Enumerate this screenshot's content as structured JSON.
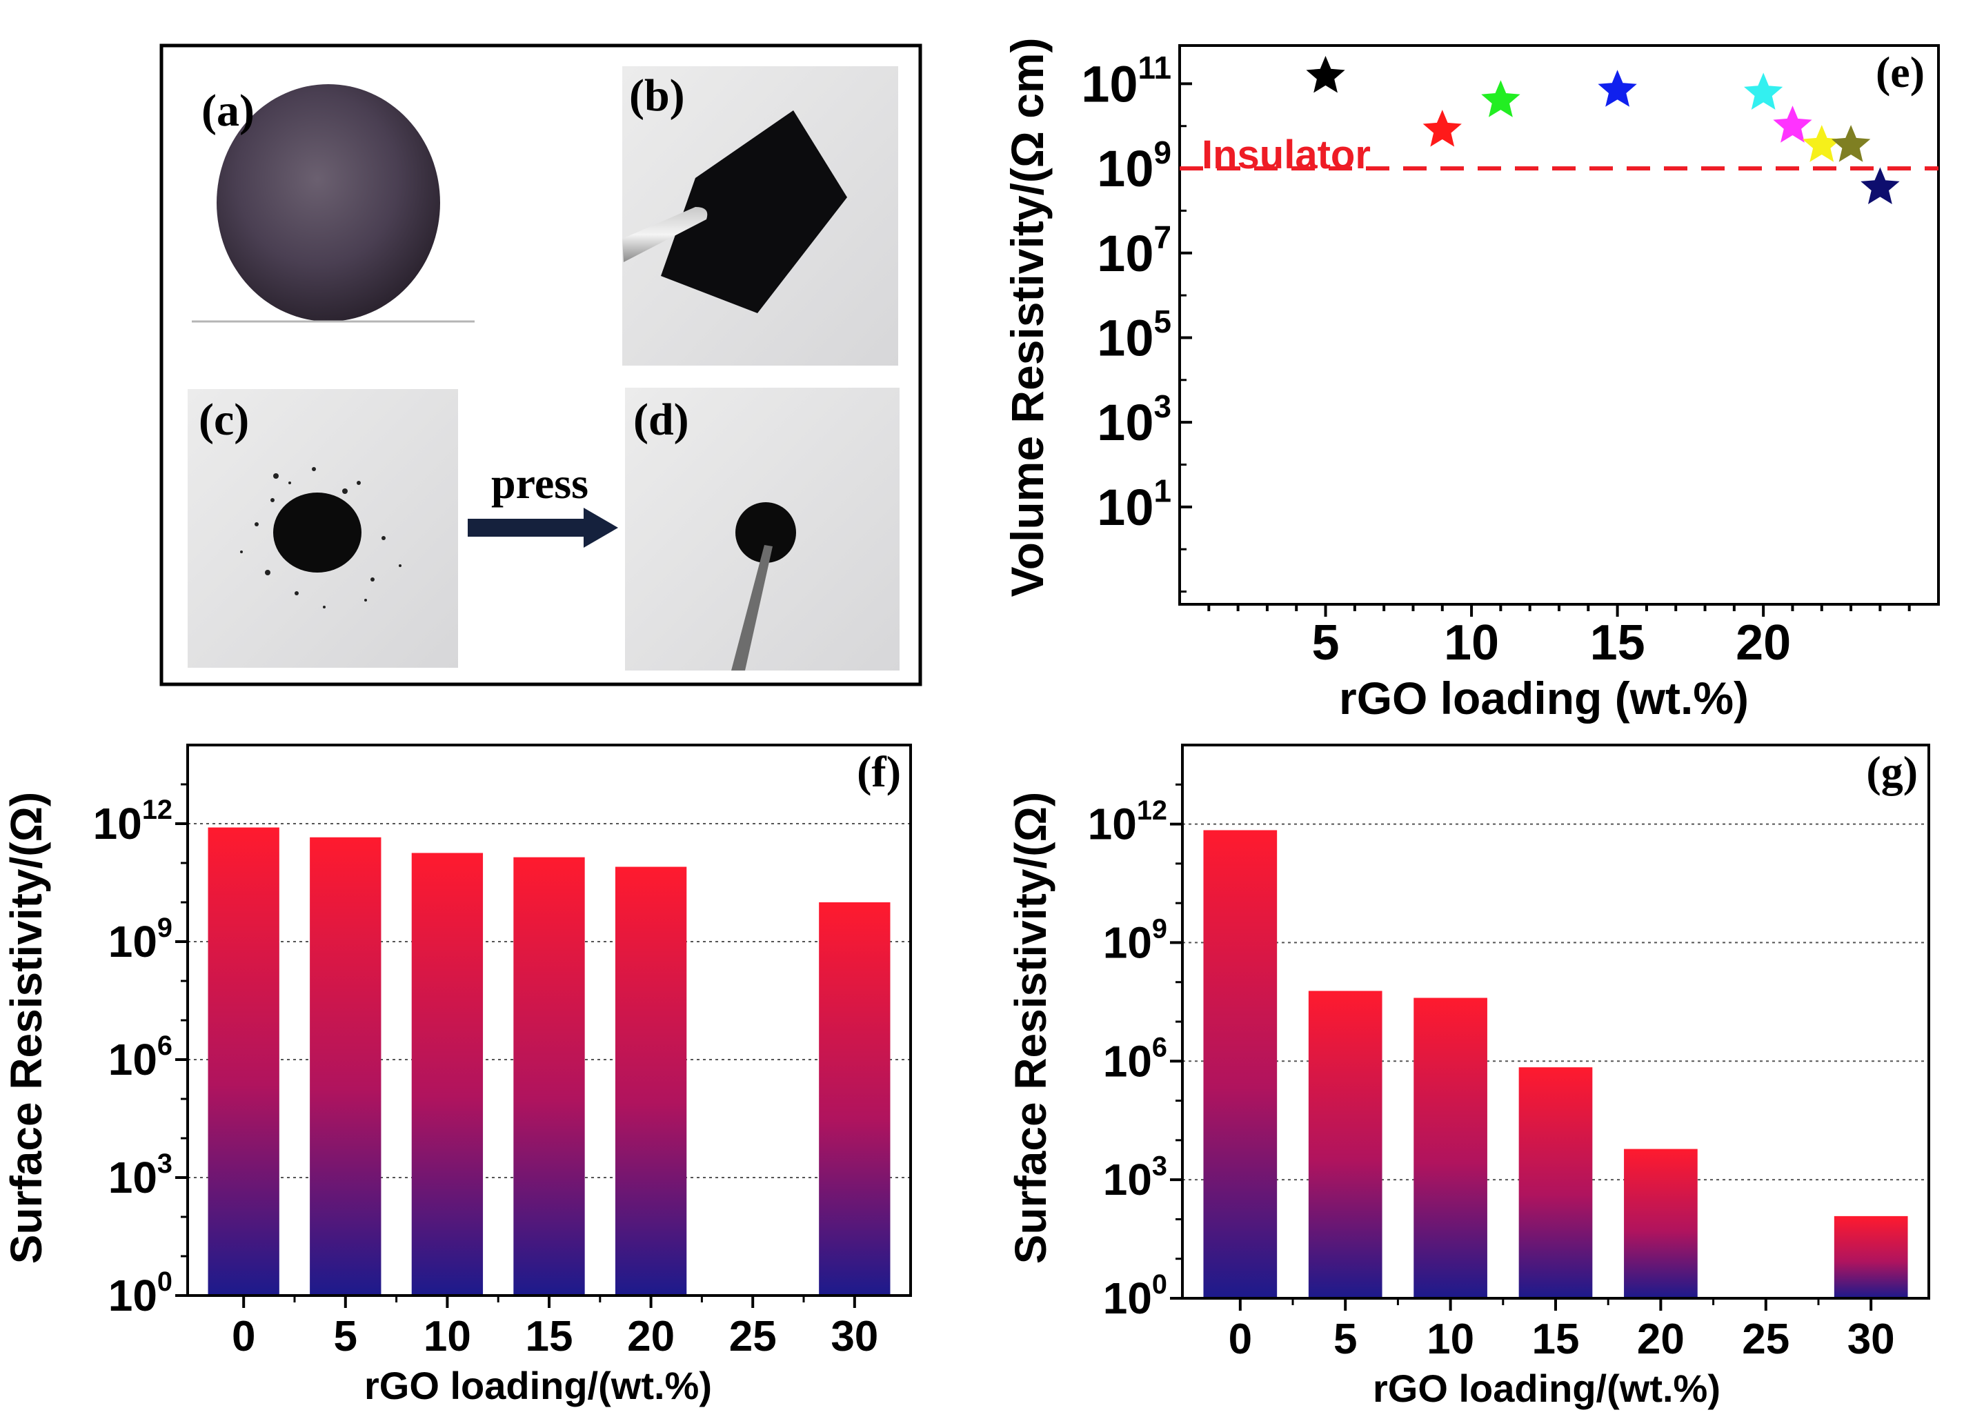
{
  "photos": {
    "a": {
      "letter": "(a)"
    },
    "b": {
      "letter": "(b)"
    },
    "c": {
      "letter": "(c)"
    },
    "d": {
      "letter": "(d)"
    },
    "arrow_label": "press"
  },
  "chart_data": [
    {
      "panel": "(e)",
      "type": "scatter",
      "marker": "star",
      "xlabel": "rGO loading (wt.%)",
      "ylabel": "Volume Resistivity/(Ω cm)",
      "yscale": "log",
      "xlim": [
        0,
        26
      ],
      "ylim": [
        0.05,
        800000000000
      ],
      "x_ticks": [
        5,
        10,
        15,
        20
      ],
      "y_tick_exponents": [
        1,
        3,
        5,
        7,
        9,
        11
      ],
      "annotation": "Insulator",
      "threshold": 1000000000,
      "threshold_color": "#ee1c25",
      "points": [
        {
          "x": 5,
          "y": 150000000000,
          "color": "#000000"
        },
        {
          "x": 9,
          "y": 8000000000,
          "color": "#ff1a1a"
        },
        {
          "x": 11,
          "y": 40000000000,
          "color": "#22ee22"
        },
        {
          "x": 15,
          "y": 70000000000,
          "color": "#1020ee"
        },
        {
          "x": 20,
          "y": 60000000000,
          "color": "#33f0f0"
        },
        {
          "x": 21,
          "y": 10000000000,
          "color": "#ff33ff"
        },
        {
          "x": 22,
          "y": 3500000000,
          "color": "#f6f01a"
        },
        {
          "x": 23,
          "y": 3500000000,
          "color": "#7f7f22"
        },
        {
          "x": 24,
          "y": 350000000,
          "color": "#0e0e6e"
        }
      ]
    },
    {
      "panel": "(f)",
      "type": "bar",
      "xlabel": "rGO loading/(wt.%)",
      "ylabel": "Surface Resistivity/(Ω)",
      "yscale": "log",
      "ylim": [
        1,
        100000000000000
      ],
      "y_tick_exponents": [
        0,
        3,
        6,
        9,
        12
      ],
      "categories": [
        "0",
        "5",
        "10",
        "15",
        "20",
        "25",
        "30"
      ],
      "values": [
        800000000000,
        450000000000,
        180000000000,
        140000000000,
        80000000000,
        null,
        10000000000
      ],
      "gradient_top": "#ff1a2e",
      "gradient_bottom": "#1c1a8c"
    },
    {
      "panel": "(g)",
      "type": "bar",
      "xlabel": "rGO loading/(wt.%)",
      "ylabel": "Surface Resistivity/(Ω)",
      "yscale": "log",
      "ylim": [
        1,
        100000000000000
      ],
      "y_tick_exponents": [
        0,
        3,
        6,
        9,
        12
      ],
      "categories": [
        "0",
        "5",
        "10",
        "15",
        "20",
        "25",
        "30"
      ],
      "values": [
        700000000000,
        60000000,
        40000000,
        700000,
        6000,
        null,
        120
      ],
      "gradient_top": "#ff1a2e",
      "gradient_bottom": "#1c1a8c"
    }
  ]
}
